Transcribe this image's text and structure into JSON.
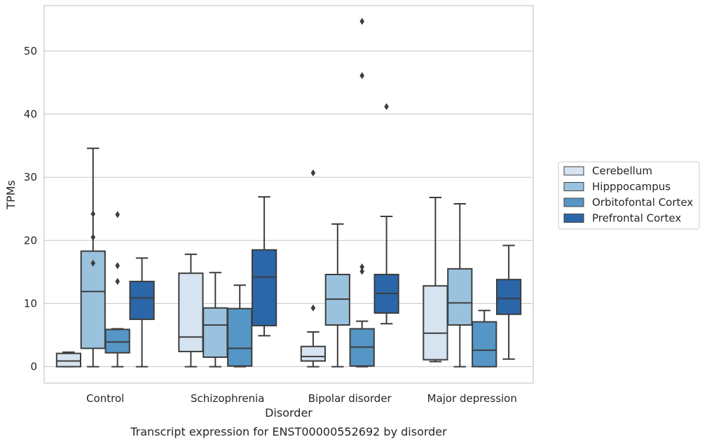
{
  "chart_data": {
    "type": "box",
    "xlabel": "Disorder",
    "ylabel": "TPMs",
    "caption": "Transcript expression for ENST00000552692 by disorder",
    "ylim": [
      -2.6,
      57.2
    ],
    "yticks": [
      0,
      10,
      20,
      30,
      40,
      50
    ],
    "grid": "horizontal",
    "legend_position": "right",
    "categories": [
      "Control",
      "Schizophrenia",
      "Bipolar disorder",
      "Major depression"
    ],
    "series": [
      {
        "name": "Cerebellum",
        "color": "#d6e3f0",
        "boxes": [
          {
            "whisker_low": 0.0,
            "q1": 0.0,
            "median": 0.9,
            "q3": 2.1,
            "whisker_high": 2.3,
            "outliers": []
          },
          {
            "whisker_low": 0.0,
            "q1": 2.4,
            "median": 4.7,
            "q3": 14.8,
            "whisker_high": 17.8,
            "outliers": []
          },
          {
            "whisker_low": 0.0,
            "q1": 0.9,
            "median": 1.6,
            "q3": 3.2,
            "whisker_high": 5.5,
            "outliers": [
              9.3,
              30.7
            ]
          },
          {
            "whisker_low": 0.8,
            "q1": 1.1,
            "median": 5.3,
            "q3": 12.8,
            "whisker_high": 26.8,
            "outliers": []
          }
        ]
      },
      {
        "name": "Hipppocampus",
        "color": "#9ac2de",
        "boxes": [
          {
            "whisker_low": 0.0,
            "q1": 2.9,
            "median": 11.9,
            "q3": 18.3,
            "whisker_high": 34.6,
            "outliers": [
              16.4,
              20.5,
              24.2
            ]
          },
          {
            "whisker_low": 0.0,
            "q1": 1.5,
            "median": 6.6,
            "q3": 9.3,
            "whisker_high": 14.9,
            "outliers": []
          },
          {
            "whisker_low": 0.0,
            "q1": 6.6,
            "median": 10.7,
            "q3": 14.6,
            "whisker_high": 22.6,
            "outliers": []
          },
          {
            "whisker_low": 0.0,
            "q1": 6.6,
            "median": 10.1,
            "q3": 15.5,
            "whisker_high": 25.8,
            "outliers": []
          }
        ]
      },
      {
        "name": "Orbitofontal Cortex",
        "color": "#5596c6",
        "boxes": [
          {
            "whisker_low": 0.0,
            "q1": 2.2,
            "median": 3.9,
            "q3": 5.9,
            "whisker_high": 6.0,
            "outliers": [
              13.5,
              16.0,
              24.1
            ]
          },
          {
            "whisker_low": 0.0,
            "q1": 0.1,
            "median": 2.9,
            "q3": 9.2,
            "whisker_high": 12.9,
            "outliers": []
          },
          {
            "whisker_low": 0.0,
            "q1": 0.1,
            "median": 3.1,
            "q3": 6.0,
            "whisker_high": 7.2,
            "outliers": [
              15.1,
              15.8,
              46.1,
              54.7
            ]
          },
          {
            "whisker_low": 0.0,
            "q1": 0.0,
            "median": 2.6,
            "q3": 7.1,
            "whisker_high": 8.9,
            "outliers": []
          }
        ]
      },
      {
        "name": "Prefrontal Cortex",
        "color": "#2b67a8",
        "boxes": [
          {
            "whisker_low": 0.0,
            "q1": 7.5,
            "median": 10.9,
            "q3": 13.5,
            "whisker_high": 17.2,
            "outliers": []
          },
          {
            "whisker_low": 4.9,
            "q1": 6.5,
            "median": 14.2,
            "q3": 18.5,
            "whisker_high": 26.9,
            "outliers": []
          },
          {
            "whisker_low": 6.8,
            "q1": 8.5,
            "median": 11.6,
            "q3": 14.6,
            "whisker_high": 23.8,
            "outliers": [
              41.2
            ]
          },
          {
            "whisker_low": 1.2,
            "q1": 8.3,
            "median": 10.8,
            "q3": 13.8,
            "whisker_high": 19.2,
            "outliers": []
          }
        ]
      }
    ]
  }
}
